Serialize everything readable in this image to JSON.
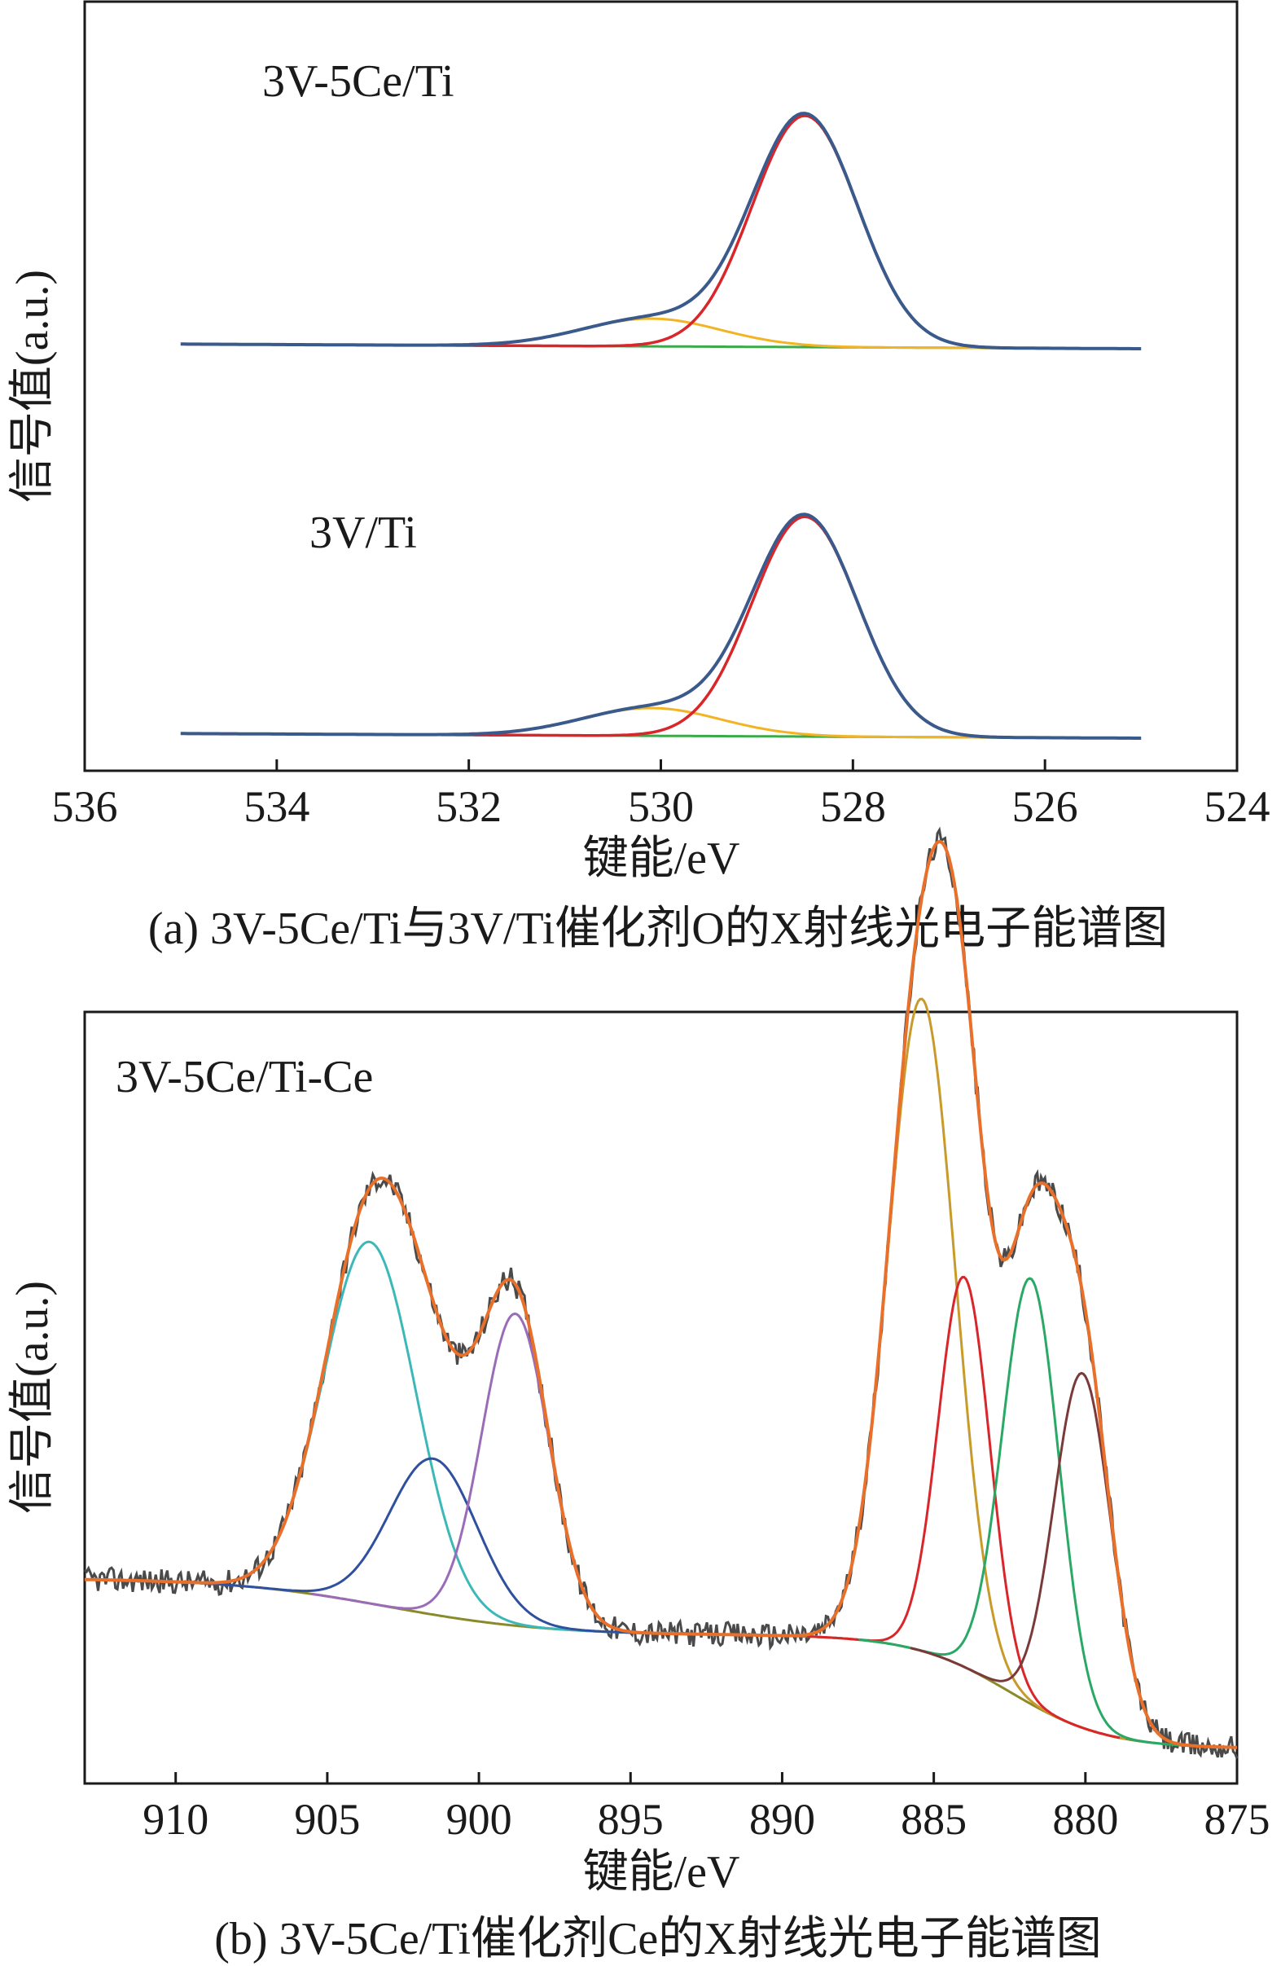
{
  "chart_data": [
    {
      "type": "line",
      "panel": "a",
      "caption": "(a) 3V-5Ce/Ti与3V/Ti催化剂O的X射线光电子能谱图",
      "xlabel": "键能/eV",
      "ylabel": "信号值(a.u.)",
      "xlim": [
        536,
        524
      ],
      "x_ticks": [
        536,
        534,
        532,
        530,
        528,
        526,
        524
      ],
      "x_reversed": true,
      "annotations": [
        "3V-5Ce/Ti",
        "3V/Ti"
      ],
      "colors": {
        "envelope": "#3a5a8c",
        "main": "#d9262b",
        "shoulder": "#f2b424",
        "background": "#3aaa4a"
      },
      "samples": [
        {
          "name": "3V-5Ce/Ti",
          "x_range": [
            535,
            525
          ],
          "baseline": 0.0,
          "peaks": [
            {
              "center": 528.5,
              "height": 1.0,
              "fwhm": 1.3,
              "role": "main"
            },
            {
              "center": 530.1,
              "height": 0.12,
              "fwhm": 1.7,
              "role": "shoulder"
            }
          ]
        },
        {
          "name": "3V/Ti",
          "x_range": [
            535,
            525
          ],
          "baseline": 0.0,
          "peaks": [
            {
              "center": 528.5,
              "height": 0.95,
              "fwhm": 1.3,
              "role": "main"
            },
            {
              "center": 530.1,
              "height": 0.12,
              "fwhm": 1.7,
              "role": "shoulder"
            }
          ]
        }
      ]
    },
    {
      "type": "line",
      "panel": "b",
      "caption": "(b) 3V-5Ce/Ti催化剂Ce的X射线光电子能谱图",
      "xlabel": "键能/eV",
      "ylabel": "信号值(a.u.)",
      "xlim": [
        913,
        875
      ],
      "x_ticks": [
        910,
        905,
        900,
        895,
        890,
        885,
        880,
        875
      ],
      "x_reversed": true,
      "annotations": [
        "3V-5Ce/Ti-Ce"
      ],
      "colors": {
        "raw": "#4a4a4a",
        "envelope": "#e8702a",
        "background": "#8a8a2a"
      },
      "peaks": [
        {
          "center": 903.6,
          "height": 0.51,
          "fwhm": 3.6,
          "color": "#3db8b8"
        },
        {
          "center": 901.5,
          "height": 0.22,
          "fwhm": 3.4,
          "color": "#2f4f9f"
        },
        {
          "center": 898.8,
          "height": 0.44,
          "fwhm": 2.6,
          "color": "#9a6cb8"
        },
        {
          "center": 885.4,
          "height": 0.92,
          "fwhm": 2.6,
          "color": "#c89a2a"
        },
        {
          "center": 884.0,
          "height": 0.55,
          "fwhm": 2.0,
          "color": "#d9262b"
        },
        {
          "center": 881.8,
          "height": 0.6,
          "fwhm": 2.2,
          "color": "#2aa866"
        },
        {
          "center": 880.1,
          "height": 0.5,
          "fwhm": 2.2,
          "color": "#7a3a3a"
        }
      ],
      "background_shirley": {
        "high_side": 0.24,
        "mid": 0.16,
        "low_side": 0.0,
        "step_center_high": 903.0,
        "step_center_low": 882.5
      }
    }
  ]
}
